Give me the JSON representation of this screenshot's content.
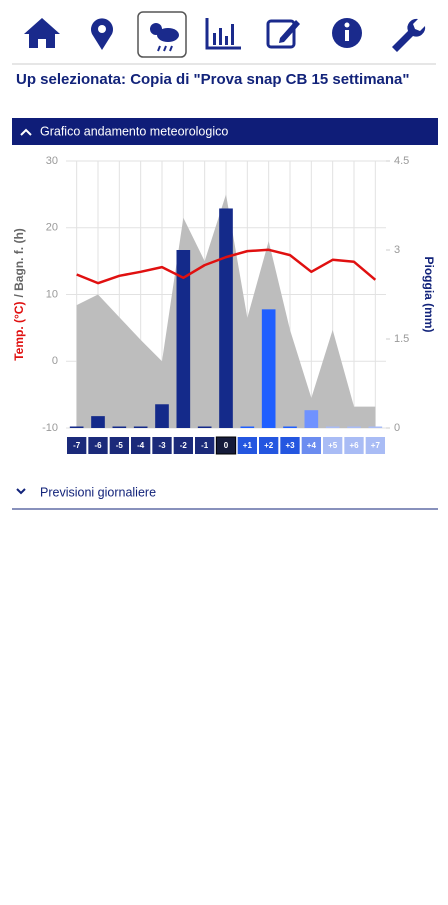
{
  "header": {
    "title": "Up selezionata: Copia di \"Prova snap CB 15 settimana\""
  },
  "sections": [
    "Grafico andamento meteorologico",
    "Previsioni giornaliere"
  ],
  "chart_data": {
    "type": "combo",
    "categories": [
      "-7",
      "-6",
      "-5",
      "-4",
      "-3",
      "-2",
      "-1",
      "0",
      "+1",
      "+2",
      "+3",
      "+4",
      "+5",
      "+6",
      "+7"
    ],
    "category_colors": [
      "#1b2a7a",
      "#1b2a7a",
      "#1b2a7a",
      "#1b2a7a",
      "#1b2a7a",
      "#1b2a7a",
      "#1b2a7a",
      "#151b3a",
      "#2456e0",
      "#2456e0",
      "#2456e0",
      "#6b8cf0",
      "#a9bcf5",
      "#a9bcf5",
      "#a9bcf5"
    ],
    "ylabel_parts": [
      {
        "text": "Temp. (°C)",
        "color": "#e01010"
      },
      {
        "text": "/ Bagn. f. (h)",
        "color": "#666666"
      }
    ],
    "y2label": "Pioggia (mm)",
    "ylim": [
      -10,
      30
    ],
    "yticks": [
      -10,
      0,
      10,
      20,
      30
    ],
    "y2lim": [
      0,
      4.5
    ],
    "y2ticks": [
      0,
      1.5,
      3,
      4.5
    ],
    "grid": true,
    "series": [
      {
        "name": "Bagn. f. (h)",
        "kind": "area",
        "color": "#bdbdbd",
        "values": [
          8.4,
          10,
          6.6,
          3.2,
          0,
          21.5,
          15,
          25,
          6.5,
          18,
          4.7,
          -5.5,
          4.7,
          -6.8,
          -6.8
        ]
      },
      {
        "name": "Pioggia (mm)",
        "kind": "bar",
        "axis": "y2",
        "colors": [
          "#142a8a",
          "#142a8a",
          "#142a8a",
          "#142a8a",
          "#142a8a",
          "#142a8a",
          "#142a8a",
          "#142a8a",
          "#1f5fff",
          "#1f5fff",
          "#1f5fff",
          "#6f92ff",
          "#a9bcf5",
          "#a9bcf5",
          "#a9bcf5"
        ],
        "values": [
          0,
          0.2,
          0,
          0,
          0.4,
          3.0,
          0,
          3.7,
          0,
          2.0,
          0,
          0.3,
          0,
          0,
          0
        ]
      },
      {
        "name": "Temp. (°C)",
        "kind": "line",
        "color": "#e01010",
        "values": [
          13,
          11.7,
          12.8,
          13.4,
          14.1,
          12.5,
          14.4,
          15.6,
          16.5,
          16.7,
          15.9,
          13.4,
          15.2,
          14.9,
          12.2
        ]
      }
    ]
  }
}
